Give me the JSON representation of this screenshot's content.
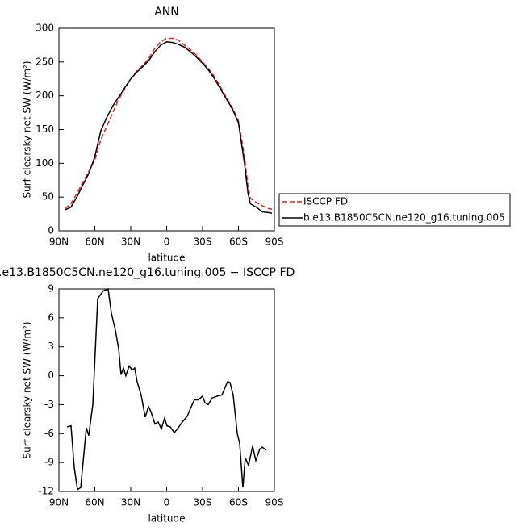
{
  "chart_data": [
    {
      "type": "line",
      "title": "ANN",
      "x_label": "latitude",
      "y_label": "Surf clearsky net SW (W/m²)",
      "x": [
        85,
        80,
        75,
        70,
        65,
        60,
        55,
        50,
        45,
        40,
        35,
        30,
        25,
        20,
        15,
        10,
        5,
        0,
        -5,
        -10,
        -15,
        -20,
        -25,
        -30,
        -35,
        -40,
        -45,
        -50,
        -55,
        -60,
        -65,
        -68,
        -70,
        -75,
        -80,
        -85,
        -88
      ],
      "series": [
        {
          "name": "ISCCP FD",
          "color": "#e02020",
          "style": "dashed",
          "values": [
            33,
            40,
            55,
            72,
            88,
            105,
            135,
            155,
            175,
            195,
            210,
            225,
            237,
            245,
            255,
            270,
            280,
            285,
            285,
            282,
            275,
            268,
            260,
            250,
            240,
            228,
            213,
            197,
            182,
            163,
            110,
            65,
            48,
            42,
            37,
            33,
            32
          ]
        },
        {
          "name": "b.e13.B1850C5CN.ne120_g16.tuning.005",
          "color": "#000000",
          "style": "solid",
          "values": [
            31,
            35,
            50,
            68,
            85,
            110,
            148,
            168,
            185,
            198,
            212,
            225,
            235,
            243,
            252,
            265,
            275,
            280,
            279,
            276,
            272,
            265,
            257,
            248,
            238,
            225,
            210,
            195,
            180,
            160,
            100,
            55,
            40,
            35,
            28,
            27,
            26
          ]
        }
      ],
      "xlim": [
        90,
        -90
      ],
      "xticks": [
        {
          "value": 90,
          "label": "90N"
        },
        {
          "value": 60,
          "label": "60N"
        },
        {
          "value": 30,
          "label": "30N"
        },
        0,
        {
          "value": -30,
          "label": "30S"
        },
        {
          "value": -60,
          "label": "60S"
        },
        {
          "value": -90,
          "label": "90S"
        }
      ],
      "ylim": [
        0,
        300
      ],
      "yticks": [
        0,
        50,
        100,
        150,
        200,
        250,
        300
      ],
      "legend": "outside-right"
    },
    {
      "type": "line",
      "title": ".e13.B1850C5CN.ne120_g16.tuning.005 − ISCCP FD",
      "x_label": "latitude",
      "y_label": "Surf clearsky net SW (W/m²)",
      "x": [
        83.3,
        79.9,
        77.2,
        74.5,
        71.8,
        67.1,
        65.1,
        61.7,
        57.6,
        52.9,
        48.9,
        46.2,
        42.8,
        40.1,
        38.1,
        36.1,
        34.1,
        31.4,
        28.7,
        26.7,
        24.7,
        21.3,
        17.9,
        15.2,
        13.2,
        9.8,
        7.1,
        4.4,
        1.7,
        -0.3,
        -3.0,
        -6.4,
        -9.1,
        -12.5,
        -17.2,
        -20.6,
        -23.2,
        -26.6,
        -30,
        -32,
        -34.7,
        -38.1,
        -42.8,
        -46.2,
        -50.9,
        -52.9,
        -55.6,
        -59,
        -61,
        -63.7,
        -65.7,
        -68.4,
        -71.8,
        -74.5,
        -77.8,
        -79.8,
        -83.2
      ],
      "series": [
        {
          "color": "#000000",
          "style": "solid",
          "values": [
            -5.3,
            -5.2,
            -9.5,
            -11.8,
            -11.6,
            -5.4,
            -6.2,
            -3,
            8,
            8.8,
            9,
            6.5,
            4.7,
            2.8,
            0.1,
            0.8,
            0,
            1,
            0.6,
            0.8,
            -0.6,
            -2,
            -4.3,
            -3.2,
            -3.7,
            -5,
            -4.8,
            -5.5,
            -4.4,
            -5.2,
            -5.3,
            -5.9,
            -5.5,
            -4.9,
            -4.2,
            -3.2,
            -2.5,
            -2.5,
            -2.1,
            -2.8,
            -3,
            -2.3,
            -2.1,
            -2,
            -0.6,
            -0.7,
            -2,
            -6,
            -7,
            -11.6,
            -8.5,
            -9.3,
            -7.3,
            -8.8,
            -7.6,
            -7.4,
            -7.7
          ]
        }
      ],
      "xlim": [
        90,
        -90
      ],
      "xticks": [
        {
          "value": 90,
          "label": "90N"
        },
        {
          "value": 60,
          "label": "60N"
        },
        {
          "value": 30,
          "label": "30N"
        },
        0,
        {
          "value": -30,
          "label": "30S"
        },
        {
          "value": -60,
          "label": "60S"
        },
        {
          "value": -90,
          "label": "90S"
        }
      ],
      "ylim": [
        -12,
        9
      ],
      "yticks": [
        9,
        6,
        3,
        0,
        -3,
        -6,
        -9,
        -12
      ]
    }
  ]
}
